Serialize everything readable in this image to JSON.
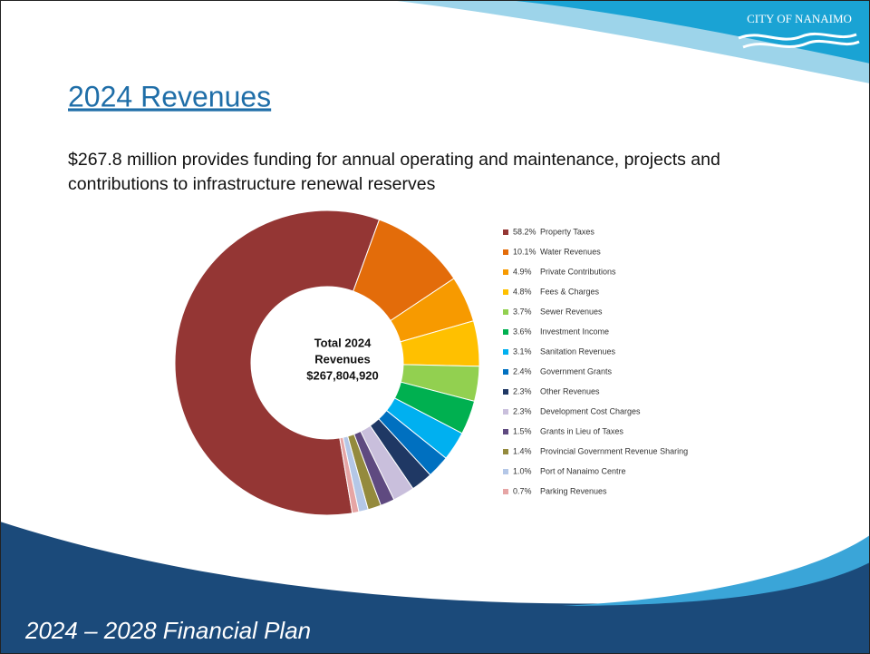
{
  "slide": {
    "logo": "CITY OF NANAIMO",
    "title": "2024 Revenues",
    "subtitle": [
      "$267.8 million provides funding for annual operating and maintenance, projects and",
      "contributions to infrastructure renewal reserves"
    ],
    "footer": "2024 – 2028 Financial Plan"
  },
  "chart_data": {
    "type": "pie",
    "center_text": [
      "Total 2024",
      "Revenues",
      "$267,804,920"
    ],
    "categories": [
      "Property Taxes",
      "Water Revenues",
      "Private Contributions",
      "Fees & Charges",
      "Sewer Revenues",
      "Investment Income",
      "Sanitation Revenues",
      "Government Grants",
      "Other Revenues",
      "Development Cost Charges",
      "Grants in Lieu of Taxes",
      "Provincial Government Revenue Sharing",
      "Port of Nanaimo Centre",
      "Parking Revenues"
    ],
    "values": [
      58.2,
      10.1,
      4.9,
      4.8,
      3.7,
      3.6,
      3.1,
      2.4,
      2.3,
      2.3,
      1.5,
      1.4,
      1.0,
      0.7
    ],
    "value_labels": [
      "58.2%",
      "10.1%",
      "4.9%",
      "4.8%",
      "3.7%",
      "3.6%",
      "3.1%",
      "2.4%",
      "2.3%",
      "2.3%",
      "1.5%",
      "1.4%",
      "1.0%",
      "0.7%"
    ],
    "colors": [
      "#943634",
      "#e36c0a",
      "#f79a00",
      "#ffc000",
      "#92d050",
      "#00b050",
      "#00b0f0",
      "#0070c0",
      "#1f3864",
      "#c9bfdc",
      "#5f4a80",
      "#948a3d",
      "#b4c7e7",
      "#e6a5a5"
    ],
    "legend": "right"
  }
}
